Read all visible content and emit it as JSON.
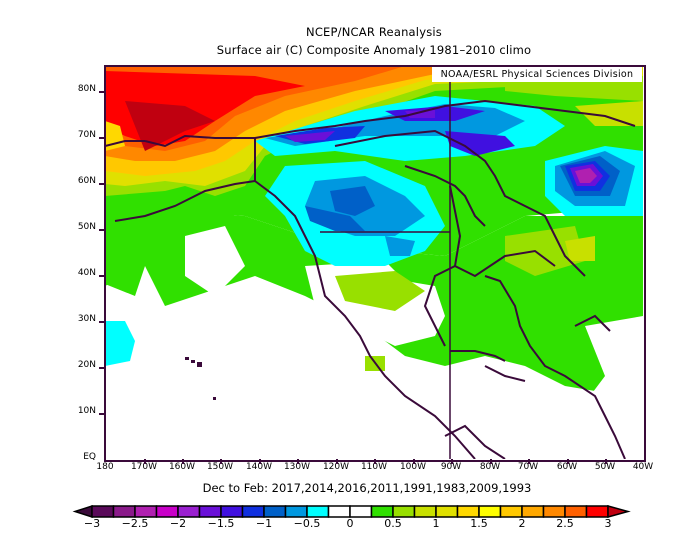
{
  "header": {
    "title_line1": "NCEP/NCAR Reanalysis",
    "title_line2": "Surface air (C) Composite Anomaly 1981–2010 climo"
  },
  "map": {
    "credit": "NOAA/ESRL Physical Sciences Division",
    "variable": "Surface air temperature anomaly (C)",
    "region": {
      "lon_min": -180,
      "lon_max": -40,
      "lat_min": 0,
      "lat_max": 85
    },
    "lat_ticks": [
      "80N",
      "70N",
      "60N",
      "50N",
      "40N",
      "30N",
      "20N",
      "10N",
      "EQ"
    ],
    "lon_ticks": [
      "180",
      "170W",
      "160W",
      "150W",
      "140W",
      "130W",
      "120W",
      "110W",
      "100W",
      "90W",
      "80W",
      "70W",
      "60W",
      "50W",
      "40W"
    ],
    "features": [
      {
        "name": "Warm anomaly over Arctic Ocean / Chukchi-Beaufort",
        "max_value": "> 3"
      },
      {
        "name": "Cold anomaly over Canadian Arctic Archipelago",
        "min_value": "-1.5 to -2"
      },
      {
        "name": "Cold anomaly over southwestern Canada / northwestern US",
        "min_value": "-1"
      },
      {
        "name": "Cold anomaly centered over Labrador Sea / Hudson Strait",
        "min_value": "-2"
      },
      {
        "name": "Weak warm anomaly (0.25-1) over eastern US, Gulf, Caribbean",
        "max_value": "1"
      }
    ]
  },
  "footer": {
    "subtitle": "Dec to Feb: 2017,2014,2016,2011,1991,1983,2009,1993"
  },
  "colorbar": {
    "labels": [
      "−3",
      "−2.5",
      "−2",
      "−1.5",
      "−1",
      "−0.5",
      "0",
      "0.5",
      "1",
      "1.5",
      "2",
      "2.5",
      "3"
    ],
    "low_extend_color": "#3a0a3a",
    "high_extend_color": "#c00010",
    "colors": [
      "#5a0a5a",
      "#8a1a8a",
      "#b020b0",
      "#c800c8",
      "#9a20d0",
      "#6a10d8",
      "#4010e0",
      "#1030e0",
      "#0060c8",
      "#0098e0",
      "#00ffff",
      "#ffffff",
      "#ffffff",
      "#30e000",
      "#98e000",
      "#c8e000",
      "#e0e000",
      "#ffd800",
      "#ffff00",
      "#ffc800",
      "#ffa800",
      "#ff8800",
      "#ff6000",
      "#ff0000"
    ]
  }
}
